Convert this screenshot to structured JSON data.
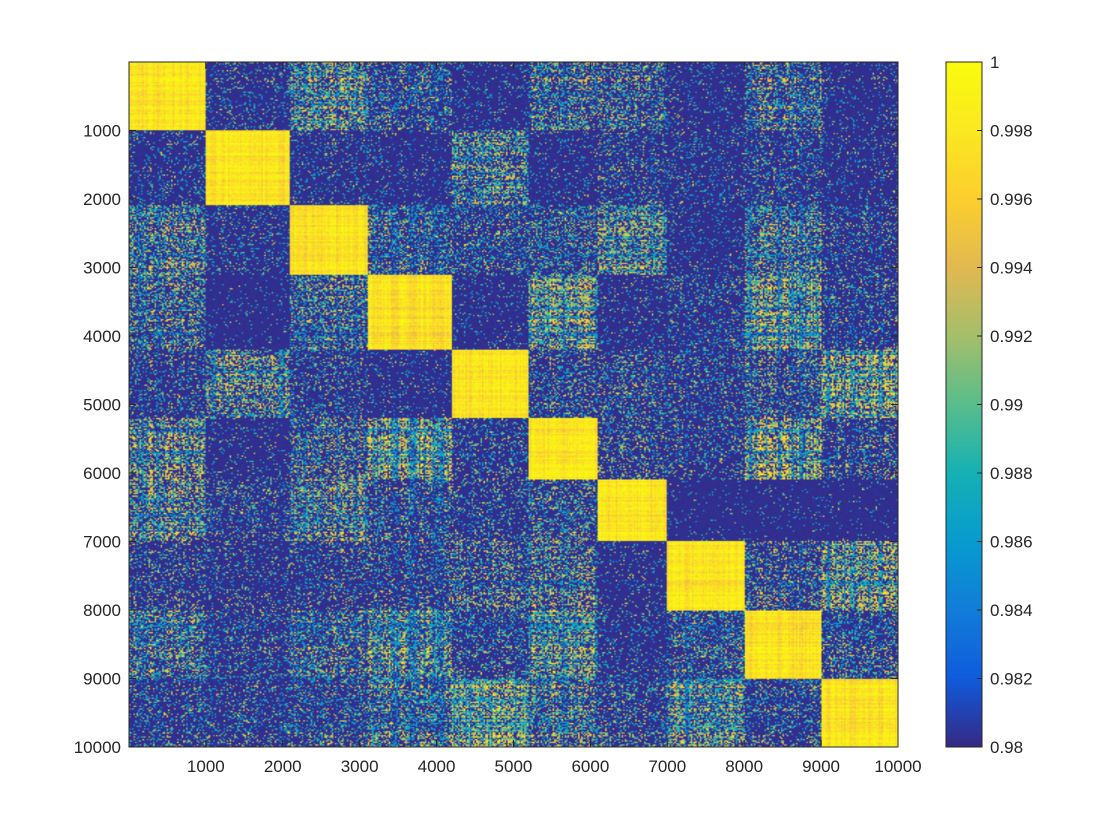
{
  "chart_data": {
    "type": "heatmap",
    "title": "",
    "xlabel": "",
    "ylabel": "",
    "xlim": [
      1,
      10000
    ],
    "ylim": [
      1,
      10000
    ],
    "y_direction": "reversed",
    "x_ticks": [
      1000,
      2000,
      3000,
      4000,
      5000,
      6000,
      7000,
      8000,
      9000,
      10000
    ],
    "y_ticks": [
      1000,
      2000,
      3000,
      4000,
      5000,
      6000,
      7000,
      8000,
      9000,
      10000
    ],
    "colorbar": {
      "colormap": "parula",
      "limits": [
        0.98,
        1
      ],
      "ticks": [
        0.98,
        0.982,
        0.984,
        0.986,
        0.988,
        0.99,
        0.992,
        0.994,
        0.996,
        0.998,
        1
      ],
      "tick_labels": [
        "0.98",
        "0.982",
        "0.984",
        "0.986",
        "0.988",
        "0.99",
        "0.992",
        "0.994",
        "0.996",
        "0.998",
        "1"
      ]
    },
    "block_boundaries": [
      0,
      1000,
      2100,
      3100,
      4200,
      5200,
      6100,
      7000,
      8000,
      9000,
      10000
    ],
    "block_intensity_matrix": [
      [
        1.0,
        0.15,
        0.55,
        0.3,
        0.1,
        0.4,
        0.35,
        0.1,
        0.4,
        0.1
      ],
      [
        0.15,
        1.0,
        0.15,
        0.1,
        0.5,
        0.1,
        0.2,
        0.15,
        0.2,
        0.1
      ],
      [
        0.5,
        0.15,
        1.0,
        0.35,
        0.25,
        0.3,
        0.55,
        0.1,
        0.45,
        0.2
      ],
      [
        0.4,
        0.05,
        0.4,
        1.0,
        0.1,
        0.65,
        0.1,
        0.2,
        0.65,
        0.2
      ],
      [
        0.2,
        0.5,
        0.2,
        0.1,
        1.0,
        0.25,
        0.25,
        0.2,
        0.3,
        0.65
      ],
      [
        0.5,
        0.1,
        0.35,
        0.65,
        0.2,
        1.0,
        0.25,
        0.2,
        0.65,
        0.25
      ],
      [
        0.5,
        0.2,
        0.5,
        0.3,
        0.2,
        0.3,
        1.0,
        0.05,
        0.05,
        0.05
      ],
      [
        0.2,
        0.15,
        0.2,
        0.25,
        0.35,
        0.4,
        0.1,
        1.0,
        0.3,
        0.6
      ],
      [
        0.45,
        0.2,
        0.4,
        0.6,
        0.25,
        0.6,
        0.15,
        0.3,
        1.0,
        0.3
      ],
      [
        0.2,
        0.2,
        0.25,
        0.45,
        0.7,
        0.45,
        0.25,
        0.6,
        0.25,
        1.0
      ]
    ],
    "legend": "none",
    "grid": false
  }
}
